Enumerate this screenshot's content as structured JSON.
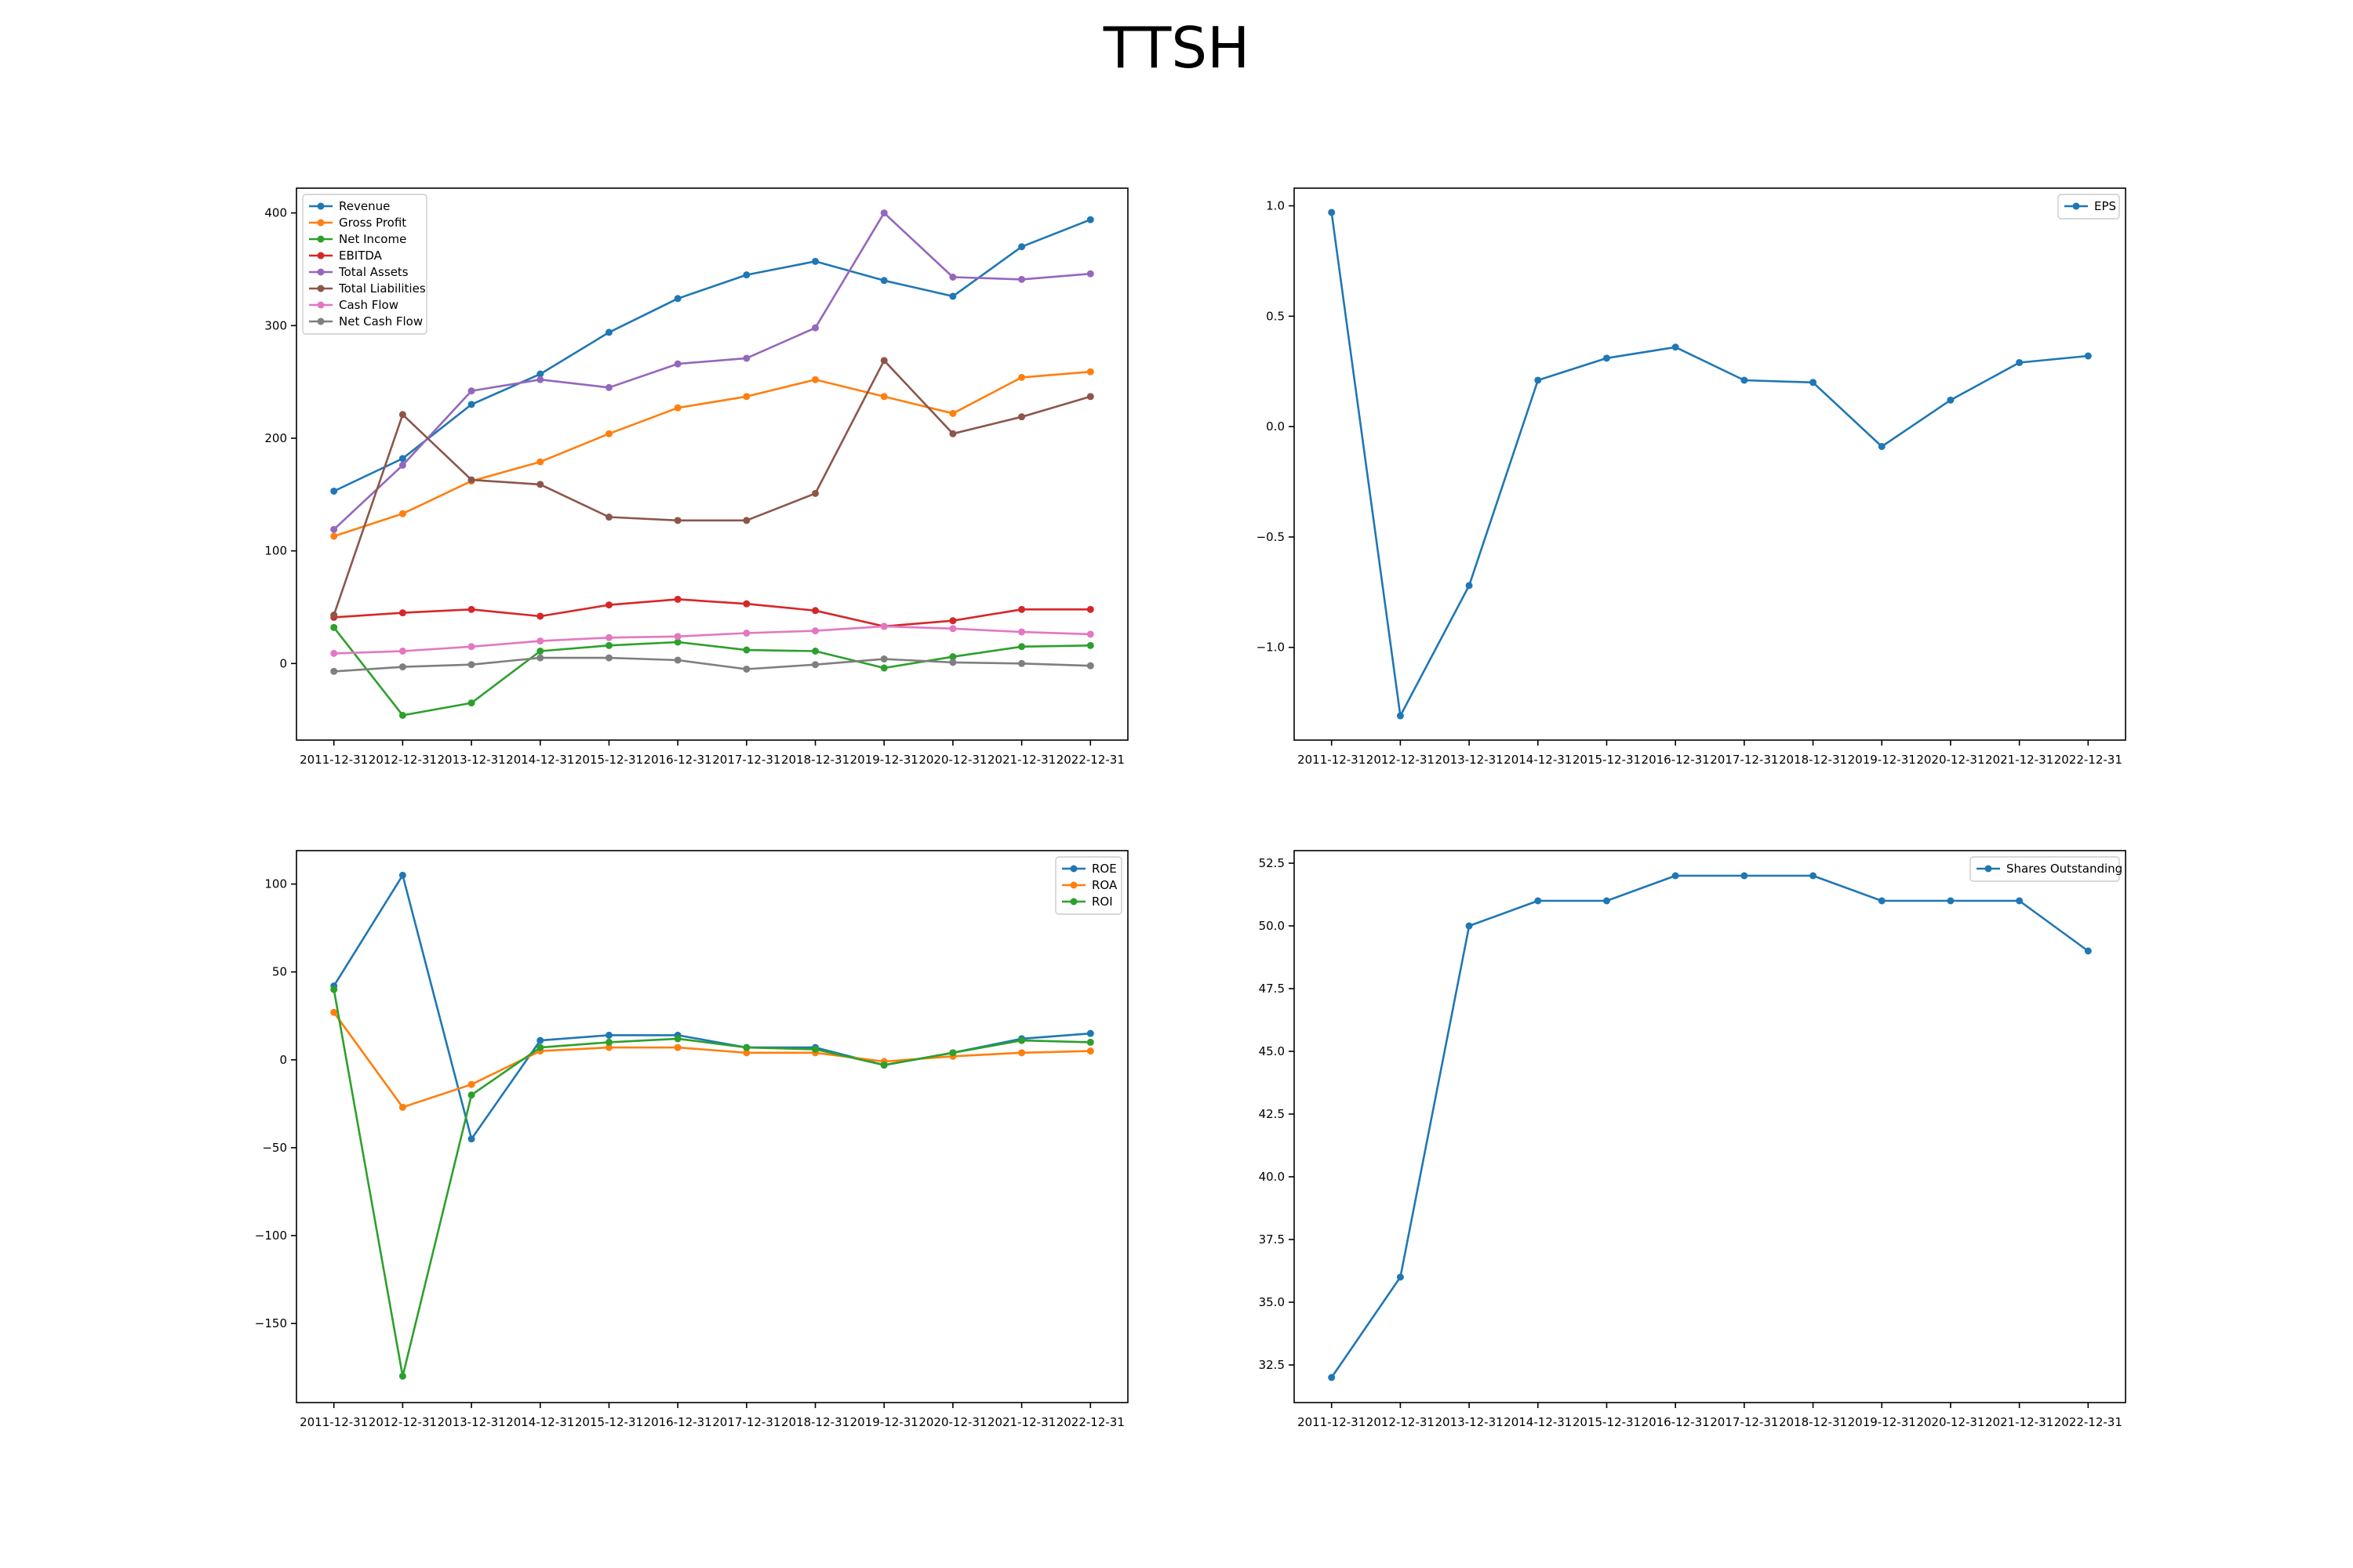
{
  "page": {
    "title": "TTSH"
  },
  "chart_data": [
    {
      "type": "line",
      "categories": [
        "2011-12-31",
        "2012-12-31",
        "2013-12-31",
        "2014-12-31",
        "2015-12-31",
        "2016-12-31",
        "2017-12-31",
        "2018-12-31",
        "2019-12-31",
        "2020-12-31",
        "2021-12-31",
        "2022-12-31"
      ],
      "ylim": [
        -68,
        422
      ],
      "yticks": [
        0,
        100,
        200,
        300,
        400
      ],
      "yticklabels": [
        "0",
        "100",
        "200",
        "300",
        "400"
      ],
      "legend": "upper-left",
      "grid": false,
      "series": [
        {
          "name": "Revenue",
          "color": "#1f77b4",
          "values": [
            153,
            182,
            230,
            257,
            294,
            324,
            345,
            357,
            340,
            326,
            370,
            394
          ]
        },
        {
          "name": "Gross Profit",
          "color": "#ff7f0e",
          "values": [
            113,
            133,
            162,
            179,
            204,
            227,
            237,
            252,
            237,
            222,
            254,
            259
          ]
        },
        {
          "name": "Net Income",
          "color": "#2ca02c",
          "values": [
            32,
            -46,
            -35,
            11,
            16,
            19,
            12,
            11,
            -4,
            6,
            15,
            16
          ]
        },
        {
          "name": "EBITDA",
          "color": "#d62728",
          "values": [
            41,
            45,
            48,
            42,
            52,
            57,
            53,
            47,
            33,
            38,
            48,
            48
          ]
        },
        {
          "name": "Total Assets",
          "color": "#9467bd",
          "values": [
            119,
            176,
            242,
            252,
            245,
            266,
            271,
            298,
            400,
            343,
            341,
            346
          ]
        },
        {
          "name": "Total Liabilities",
          "color": "#8c564b",
          "values": [
            43,
            221,
            163,
            159,
            130,
            127,
            127,
            151,
            269,
            204,
            219,
            237
          ]
        },
        {
          "name": "Cash Flow",
          "color": "#e377c2",
          "values": [
            9,
            11,
            15,
            20,
            23,
            24,
            27,
            29,
            33,
            31,
            28,
            26
          ]
        },
        {
          "name": "Net Cash Flow",
          "color": "#7f7f7f",
          "values": [
            -7,
            -3,
            -1,
            5,
            5,
            3,
            -5,
            -1,
            4,
            1,
            0,
            -2
          ]
        }
      ]
    },
    {
      "type": "line",
      "categories": [
        "2011-12-31",
        "2012-12-31",
        "2013-12-31",
        "2014-12-31",
        "2015-12-31",
        "2016-12-31",
        "2017-12-31",
        "2018-12-31",
        "2019-12-31",
        "2020-12-31",
        "2021-12-31",
        "2022-12-31"
      ],
      "ylim": [
        -1.42,
        1.08
      ],
      "yticks": [
        1.0,
        0.5,
        0.0,
        -0.5,
        -1.0
      ],
      "yticklabels": [
        "1.0",
        "0.5",
        "0.0",
        "−0.5",
        "−1.0"
      ],
      "legend": "upper-right",
      "grid": false,
      "series": [
        {
          "name": "EPS",
          "color": "#1f77b4",
          "values": [
            0.97,
            -1.31,
            -0.72,
            0.21,
            0.31,
            0.36,
            0.21,
            0.2,
            -0.09,
            0.12,
            0.29,
            0.32
          ]
        }
      ]
    },
    {
      "type": "line",
      "categories": [
        "2011-12-31",
        "2012-12-31",
        "2013-12-31",
        "2014-12-31",
        "2015-12-31",
        "2016-12-31",
        "2017-12-31",
        "2018-12-31",
        "2019-12-31",
        "2020-12-31",
        "2021-12-31",
        "2022-12-31"
      ],
      "ylim": [
        -195,
        119
      ],
      "yticks": [
        100,
        50,
        0,
        -50,
        -100,
        -150
      ],
      "yticklabels": [
        "100",
        "50",
        "0",
        "−50",
        "−100",
        "−150"
      ],
      "legend": "upper-right",
      "grid": false,
      "series": [
        {
          "name": "ROE",
          "color": "#1f77b4",
          "values": [
            42,
            105,
            -45,
            11,
            14,
            14,
            7,
            7,
            -3,
            4,
            12,
            15
          ]
        },
        {
          "name": "ROA",
          "color": "#ff7f0e",
          "values": [
            27,
            -27,
            -14,
            5,
            7,
            7,
            4,
            4,
            -1,
            2,
            4,
            5
          ]
        },
        {
          "name": "ROI",
          "color": "#2ca02c",
          "values": [
            40,
            -180,
            -20,
            7,
            10,
            12,
            7,
            6,
            -3,
            4,
            11,
            10
          ]
        }
      ]
    },
    {
      "type": "line",
      "categories": [
        "2011-12-31",
        "2012-12-31",
        "2013-12-31",
        "2014-12-31",
        "2015-12-31",
        "2016-12-31",
        "2017-12-31",
        "2018-12-31",
        "2019-12-31",
        "2020-12-31",
        "2021-12-31",
        "2022-12-31"
      ],
      "ylim": [
        31.0,
        53.0
      ],
      "yticks": [
        52.5,
        50.0,
        47.5,
        45.0,
        42.5,
        40.0,
        37.5,
        35.0,
        32.5
      ],
      "yticklabels": [
        "52.5",
        "50.0",
        "47.5",
        "45.0",
        "42.5",
        "40.0",
        "37.5",
        "35.0",
        "32.5"
      ],
      "legend": "upper-right",
      "grid": false,
      "series": [
        {
          "name": "Shares Outstanding",
          "color": "#1f77b4",
          "values": [
            32,
            36,
            50,
            51,
            51,
            52,
            52,
            52,
            51,
            51,
            51,
            49
          ]
        }
      ]
    }
  ]
}
